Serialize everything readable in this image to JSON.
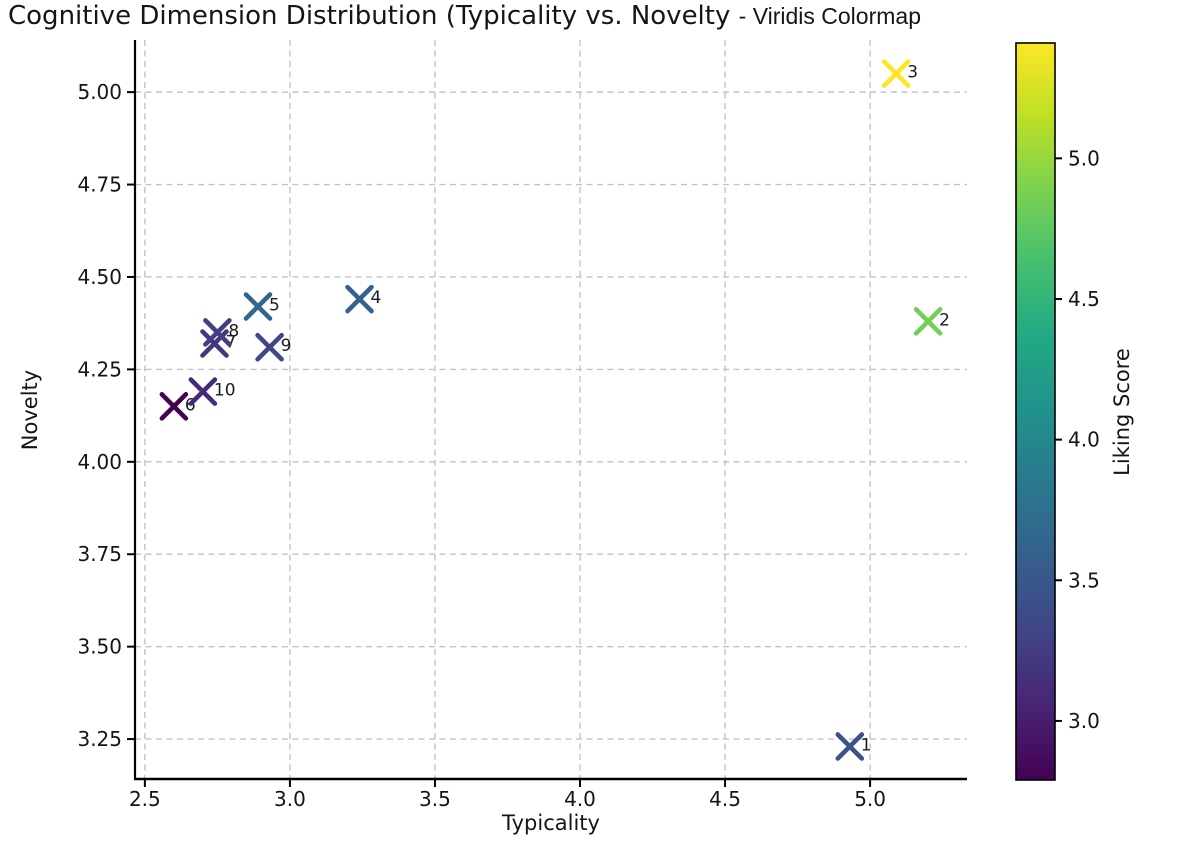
{
  "title": {
    "part1": "Cognitive Dimension Distribution (Typicality vs. Novelty ",
    "part2": "- Viridis Colormap"
  },
  "chart_data": {
    "type": "scatter",
    "title": "Cognitive Dimension Distribution (Typicality vs. Novelty - Viridis Colormap",
    "xlabel": "Typicality",
    "ylabel": "Novelty",
    "colorbar_label": "Liking Score",
    "colormap": "viridis",
    "marker": "x",
    "grid": true,
    "legend": "colorbar-right",
    "xlim": [
      2.466,
      5.334
    ],
    "ylim": [
      3.142,
      5.141
    ],
    "x_ticks": [
      {
        "v": 2.5,
        "label": "2.5"
      },
      {
        "v": 3.0,
        "label": "3.0"
      },
      {
        "v": 3.5,
        "label": "3.5"
      },
      {
        "v": 4.0,
        "label": "4.0"
      },
      {
        "v": 4.5,
        "label": "4.5"
      },
      {
        "v": 5.0,
        "label": "5.0"
      }
    ],
    "y_ticks": [
      {
        "v": 3.25,
        "label": "3.25"
      },
      {
        "v": 3.5,
        "label": "3.50"
      },
      {
        "v": 3.75,
        "label": "3.75"
      },
      {
        "v": 4.0,
        "label": "4.00"
      },
      {
        "v": 4.25,
        "label": "4.25"
      },
      {
        "v": 4.5,
        "label": "4.50"
      },
      {
        "v": 4.75,
        "label": "4.75"
      },
      {
        "v": 5.0,
        "label": "5.00"
      }
    ],
    "color_range": [
      2.79,
      5.41
    ],
    "colorbar_ticks": [
      {
        "v": 3.0,
        "label": "3.0"
      },
      {
        "v": 3.5,
        "label": "3.5"
      },
      {
        "v": 4.0,
        "label": "4.0"
      },
      {
        "v": 4.5,
        "label": "4.5"
      },
      {
        "v": 5.0,
        "label": "5.0"
      }
    ],
    "points": [
      {
        "label": "1",
        "x": 4.93,
        "y": 3.23,
        "liking": 3.45
      },
      {
        "label": "2",
        "x": 5.2,
        "y": 4.38,
        "liking": 4.85
      },
      {
        "label": "3",
        "x": 5.09,
        "y": 5.05,
        "liking": 5.41
      },
      {
        "label": "4",
        "x": 3.24,
        "y": 4.44,
        "liking": 3.6
      },
      {
        "label": "5",
        "x": 2.89,
        "y": 4.42,
        "liking": 3.65
      },
      {
        "label": "6",
        "x": 2.6,
        "y": 4.15,
        "liking": 2.79
      },
      {
        "label": "7",
        "x": 2.74,
        "y": 4.32,
        "liking": 3.2
      },
      {
        "label": "8",
        "x": 2.75,
        "y": 4.35,
        "liking": 3.28
      },
      {
        "label": "9",
        "x": 2.93,
        "y": 4.31,
        "liking": 3.33
      },
      {
        "label": "10",
        "x": 2.7,
        "y": 4.19,
        "liking": 3.1
      }
    ]
  }
}
